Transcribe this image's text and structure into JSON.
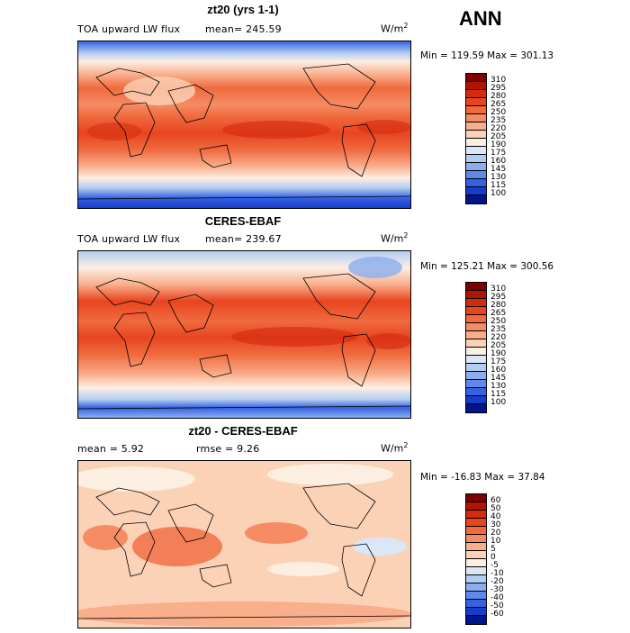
{
  "season": "ANN",
  "panels": [
    {
      "title": "zt20 (yrs 1-1)",
      "variable": "TOA upward LW flux",
      "mean_text": "mean=  245.59",
      "units": "W/m",
      "units_exp": "2",
      "minmax": "Min = 119.59  Max = 301.13",
      "min": 119.59,
      "max": 301.13,
      "mean": 245.59,
      "colorbar_labels": [
        "310",
        "295",
        "280",
        "265",
        "250",
        "235",
        "220",
        "205",
        "190",
        "175",
        "160",
        "145",
        "130",
        "115",
        "100"
      ]
    },
    {
      "title": "CERES-EBAF",
      "variable": "TOA upward LW flux",
      "mean_text": "mean=  239.67",
      "units": "W/m",
      "units_exp": "2",
      "minmax": "Min = 125.21  Max = 300.56",
      "min": 125.21,
      "max": 300.56,
      "mean": 239.67,
      "colorbar_labels": [
        "310",
        "295",
        "280",
        "265",
        "250",
        "235",
        "220",
        "205",
        "190",
        "175",
        "160",
        "145",
        "130",
        "115",
        "100"
      ]
    },
    {
      "title": "zt20 - CERES-EBAF",
      "mean_label": "mean =   5.92",
      "rmse_label": "rmse =   9.26",
      "units": "W/m",
      "units_exp": "2",
      "minmax": "Min = -16.83  Max =  37.84",
      "min": -16.83,
      "max": 37.84,
      "mean": 5.92,
      "rmse": 9.26,
      "colorbar_labels": [
        "60",
        "50",
        "40",
        "30",
        "20",
        "10",
        "5",
        "0",
        "-5",
        "-10",
        "-20",
        "-30",
        "-40",
        "-50",
        "-60"
      ]
    }
  ],
  "colors": {
    "abs_scale": [
      "#7f0000",
      "#b31400",
      "#d42a10",
      "#e8451f",
      "#f06a3f",
      "#f58c64",
      "#f9ae8c",
      "#fcd2b7",
      "#fdeee2",
      "#dbe7f6",
      "#b3cdf1",
      "#8aaeee",
      "#5f8aea",
      "#3562e3",
      "#163ccc",
      "#00148c"
    ],
    "diff_scale": [
      "#7f0000",
      "#b31400",
      "#d42a10",
      "#e8451f",
      "#f06a3f",
      "#f58c64",
      "#f9ae8c",
      "#fcd2b7",
      "#fdeee2",
      "#dbe7f6",
      "#b3cdf1",
      "#8aaeee",
      "#5f8aea",
      "#3562e3",
      "#163ccc",
      "#00148c"
    ]
  }
}
